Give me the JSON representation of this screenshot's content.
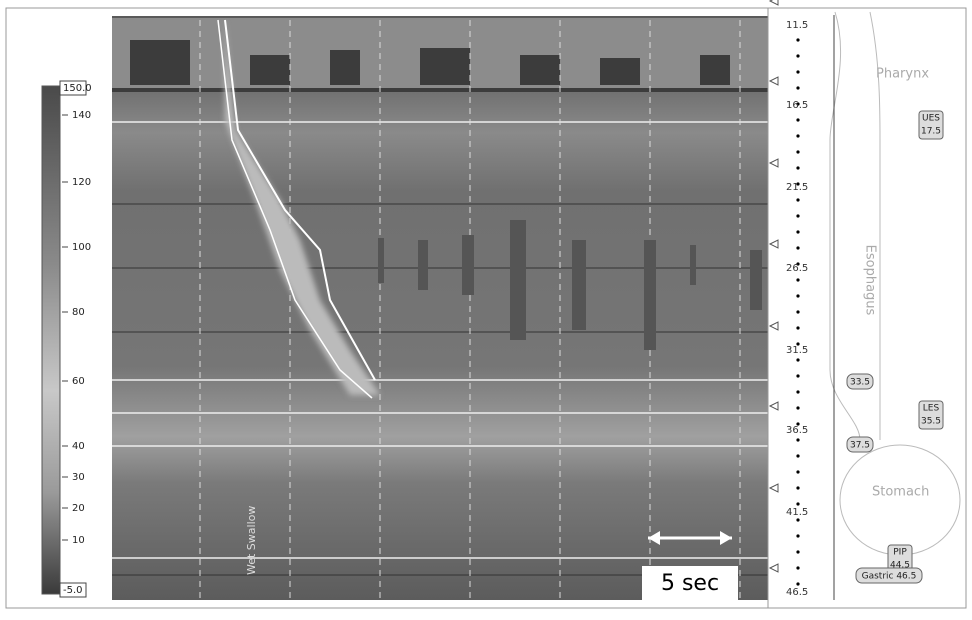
{
  "colorbar": {
    "labels": [
      "150.0",
      "140",
      "120",
      "100",
      "80",
      "60",
      "40",
      "30",
      "20",
      "10",
      "-5.0"
    ]
  },
  "depth_scale": {
    "labels": [
      "11.5",
      "16.5",
      "21.5",
      "26.5",
      "31.5",
      "36.5",
      "41.5",
      "46.5"
    ]
  },
  "regions": {
    "pharynx": "Pharynx",
    "esophagus": "Esophagus",
    "stomach": "Stomach"
  },
  "markers": {
    "ues": [
      "UES",
      "17.5"
    ],
    "les": [
      "LES",
      "35.5"
    ],
    "m1": "33.5",
    "m2": "37.5",
    "pip": [
      "PIP",
      "44.5"
    ],
    "gastric": "Gastric 46.5"
  },
  "swallow_label": "Wet Swallow",
  "time_scale": "5 sec"
}
